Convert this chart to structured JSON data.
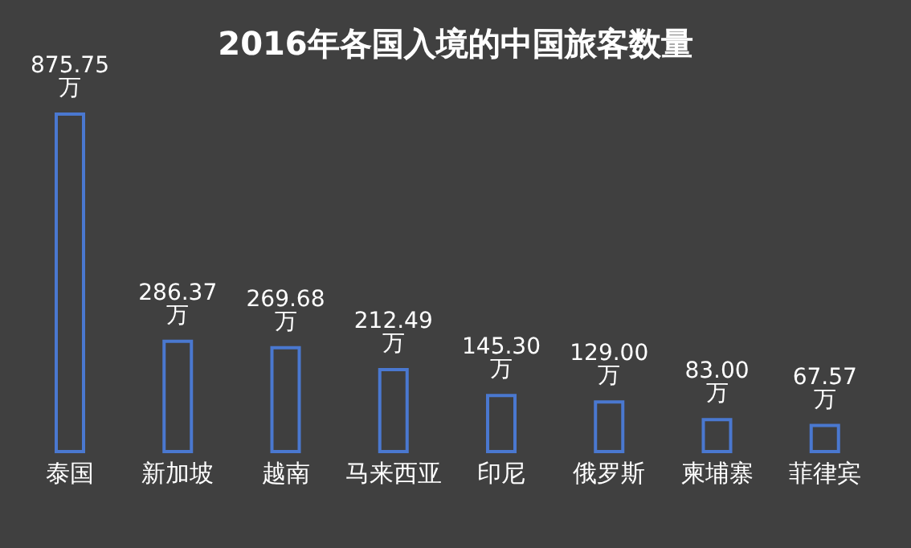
{
  "chart_data": {
    "type": "bar",
    "title": "2016年各国入境的中国旅客数量",
    "categories": [
      "泰国",
      "新加坡",
      "越南",
      "马来西亚",
      "印尼",
      "俄罗斯",
      "柬埔寨",
      "菲律宾"
    ],
    "values": [
      875.75,
      286.37,
      269.68,
      212.49,
      145.3,
      129.0,
      83.0,
      67.57
    ],
    "value_labels": [
      "875.75 万",
      "286.37 万",
      "269.68 万",
      "212.49 万",
      "145.30 万",
      "129.00 万",
      "83.00 万",
      "67.57 万"
    ],
    "color": "#4a78d0",
    "grid": false,
    "legend": false
  }
}
